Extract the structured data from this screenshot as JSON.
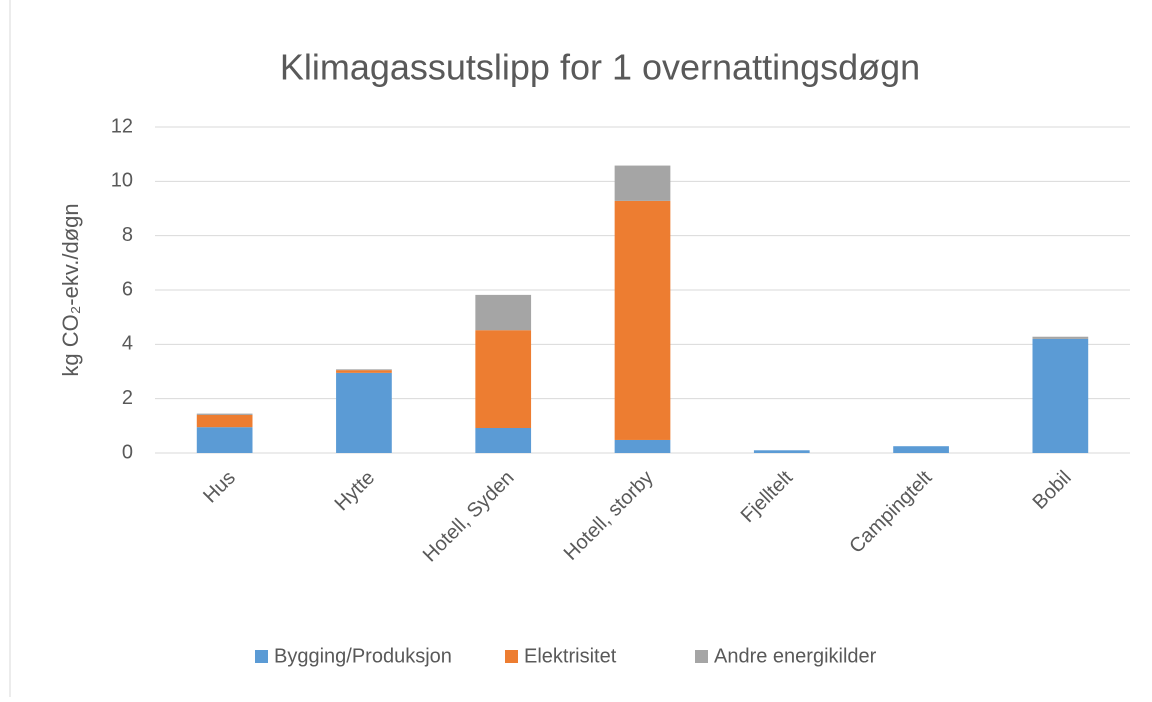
{
  "chart_data": {
    "type": "bar",
    "stacked": true,
    "title": "Klimagassutslipp for 1 overnattingsdøgn",
    "y_label": "kg CO₂-ekv./døgn",
    "categories": [
      "Hus",
      "Hytte",
      "Hotell, Syden",
      "Hotell, storby",
      "Fjelltelt",
      "Campingtelt",
      "Bobil"
    ],
    "series": [
      {
        "name": "Bygging/Produksjon",
        "color": "#5b9bd5",
        "values": [
          0.95,
          2.95,
          0.92,
          0.48,
          0.1,
          0.25,
          4.2
        ]
      },
      {
        "name": "Elektrisitet",
        "color": "#ed7d31",
        "values": [
          0.45,
          0.1,
          3.6,
          8.8,
          0,
          0,
          0
        ]
      },
      {
        "name": "Andre energikilder",
        "color": "#a5a5a5",
        "values": [
          0.05,
          0.03,
          1.3,
          1.3,
          0,
          0,
          0.08
        ]
      }
    ],
    "ylim": [
      0,
      12
    ],
    "yticks": [
      0,
      2,
      4,
      6,
      8,
      10,
      12
    ],
    "grid": true,
    "legend": "bottom"
  }
}
